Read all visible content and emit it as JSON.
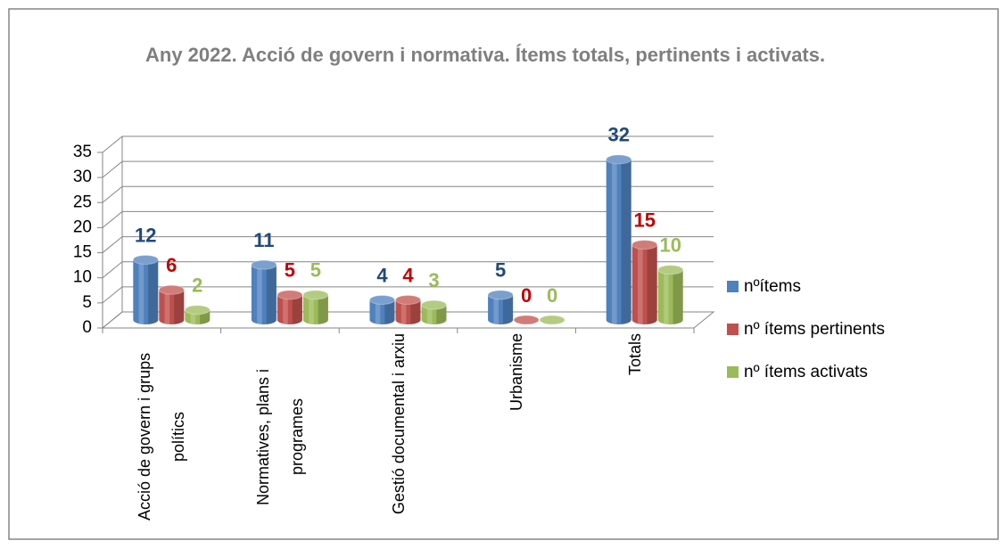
{
  "chart_data": {
    "type": "bar3d",
    "title": "Any 2022. Acció de govern i normativa. Ítems totals, pertinents i activats.",
    "categories": [
      "Acció de govern i grups polítics",
      "Normatives, plans i programes",
      "Gestió documental i arxiu",
      "Urbanisme",
      "Totals"
    ],
    "series": [
      {
        "name": "nºítems",
        "color": "#4f81bd",
        "label_color": "#1f497d",
        "values": [
          12,
          11,
          4,
          5,
          32
        ]
      },
      {
        "name": "nº ítems pertinents",
        "color": "#c0504d",
        "label_color": "#c00000",
        "values": [
          6,
          5,
          4,
          0,
          15
        ]
      },
      {
        "name": "nº ítems activats",
        "color": "#9bbb59",
        "label_color": "#9bbb59",
        "values": [
          2,
          5,
          3,
          0,
          10
        ]
      }
    ],
    "ylim": [
      0,
      35
    ],
    "yticks": [
      0,
      5,
      10,
      15,
      20,
      25,
      30,
      35
    ],
    "grid": true,
    "legend": "right"
  }
}
